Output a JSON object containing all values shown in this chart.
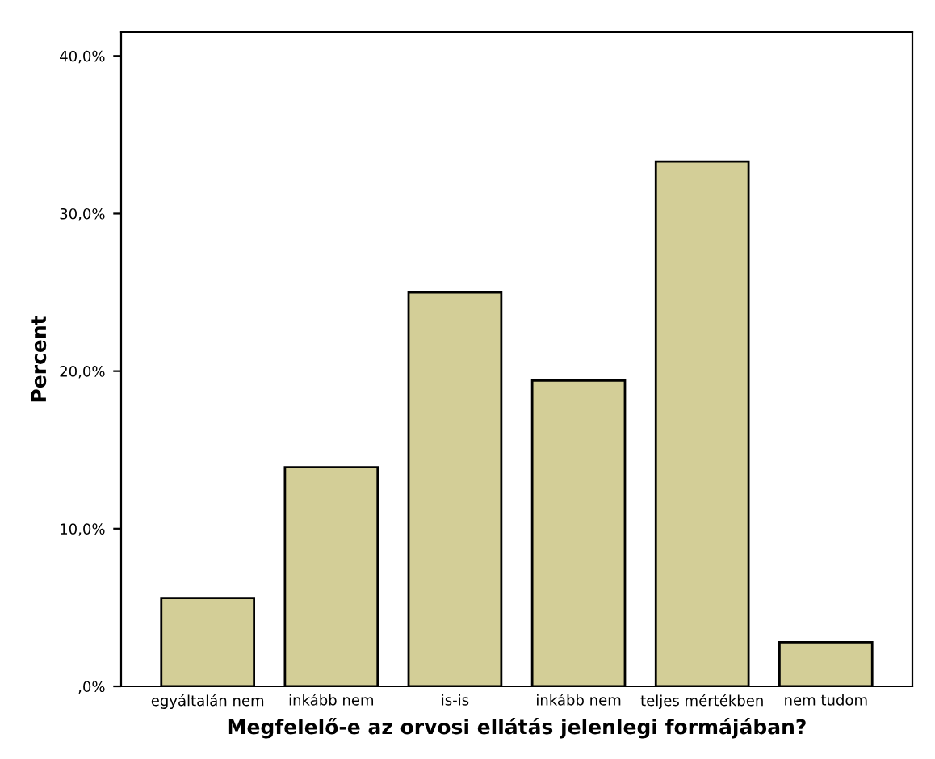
{
  "chart_data": {
    "type": "bar",
    "xlabel": "Megfelelő-e az orvosi ellátás jelenlegi formájában?",
    "ylabel": "Percent",
    "categories": [
      "egyáltalán nem",
      "inkább nem",
      "is-is",
      "inkább nem",
      "teljes mértékben",
      "nem tudom"
    ],
    "values": [
      5.6,
      13.9,
      25.0,
      19.4,
      33.3,
      2.8
    ],
    "color": "#d3ce97",
    "ylim": [
      0,
      41.5
    ],
    "yticks": [
      {
        "value": 0,
        "label": ",0%"
      },
      {
        "value": 10,
        "label": "10,0%"
      },
      {
        "value": 20,
        "label": "20,0%"
      },
      {
        "value": 30,
        "label": "30,0%"
      },
      {
        "value": 40,
        "label": "40,0%"
      }
    ],
    "grid": false
  }
}
